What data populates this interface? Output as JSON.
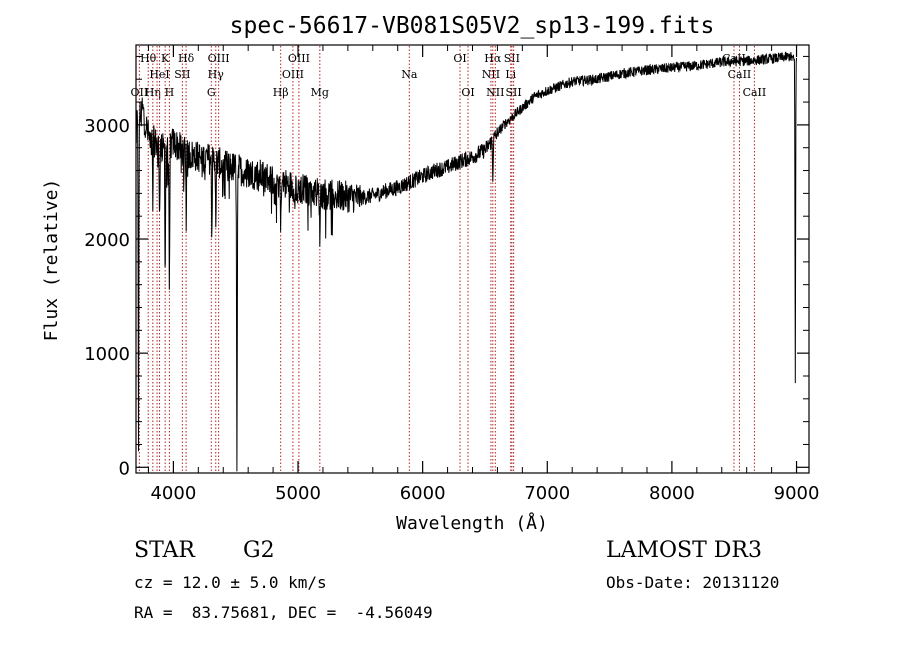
{
  "chart_data": {
    "type": "line",
    "title": "spec-56617-VB081S05V2_sp13-199.fits",
    "xlabel": "Wavelength (Å)",
    "ylabel": "Flux (relative)",
    "xlim": [
      3700,
      9100
    ],
    "ylim": [
      -50,
      3700
    ],
    "xticks": [
      4000,
      5000,
      6000,
      7000,
      8000,
      9000
    ],
    "xtick_labels": [
      "4000",
      "5000",
      "6000",
      "7000",
      "8000",
      "9000"
    ],
    "yticks": [
      0,
      1000,
      2000,
      3000
    ],
    "ytick_labels": [
      "0",
      "1000",
      "2000",
      "3000"
    ],
    "grid": false,
    "line_color": "#000000",
    "marker_color": "#b22222",
    "continuum": [
      [
        3700,
        3000
      ],
      [
        3750,
        3150
      ],
      [
        3800,
        2900
      ],
      [
        3850,
        2850
      ],
      [
        3900,
        2800
      ],
      [
        3950,
        2780
      ],
      [
        4000,
        2850
      ],
      [
        4050,
        2800
      ],
      [
        4100,
        2750
      ],
      [
        4200,
        2720
      ],
      [
        4300,
        2700
      ],
      [
        4400,
        2650
      ],
      [
        4500,
        2620
      ],
      [
        4600,
        2580
      ],
      [
        4700,
        2560
      ],
      [
        4800,
        2520
      ],
      [
        4900,
        2480
      ],
      [
        5000,
        2450
      ],
      [
        5100,
        2420
      ],
      [
        5200,
        2400
      ],
      [
        5300,
        2380
      ],
      [
        5400,
        2370
      ],
      [
        5500,
        2360
      ],
      [
        5600,
        2380
      ],
      [
        5700,
        2420
      ],
      [
        5800,
        2450
      ],
      [
        5900,
        2500
      ],
      [
        6000,
        2550
      ],
      [
        6100,
        2600
      ],
      [
        6200,
        2630
      ],
      [
        6300,
        2680
      ],
      [
        6400,
        2720
      ],
      [
        6500,
        2780
      ],
      [
        6550,
        2850
      ],
      [
        6650,
        3000
      ],
      [
        6700,
        3050
      ],
      [
        6800,
        3150
      ],
      [
        6900,
        3250
      ],
      [
        7000,
        3300
      ],
      [
        7200,
        3380
      ],
      [
        7400,
        3400
      ],
      [
        7600,
        3450
      ],
      [
        7800,
        3480
      ],
      [
        8000,
        3500
      ],
      [
        8200,
        3520
      ],
      [
        8400,
        3550
      ],
      [
        8600,
        3560
      ],
      [
        8800,
        3580
      ],
      [
        8950,
        3600
      ],
      [
        9000,
        3550
      ]
    ],
    "absorption_features": [
      {
        "wavelength": 3720,
        "depth": 3000
      },
      {
        "wavelength": 3835,
        "depth": 600
      },
      {
        "wavelength": 3889,
        "depth": 700
      },
      {
        "wavelength": 3934,
        "depth": 1200
      },
      {
        "wavelength": 3968,
        "depth": 1500
      },
      {
        "wavelength": 4102,
        "depth": 600
      },
      {
        "wavelength": 4308,
        "depth": 700
      },
      {
        "wavelength": 4341,
        "depth": 600
      },
      {
        "wavelength": 4510,
        "depth": 2550
      },
      {
        "wavelength": 4861,
        "depth": 500
      },
      {
        "wavelength": 5175,
        "depth": 400
      },
      {
        "wavelength": 6563,
        "depth": 350
      },
      {
        "wavelength": 8990,
        "depth": 2800
      }
    ],
    "line_markers": [
      {
        "wavelength": 3727,
        "top": "OII",
        "row": 3
      },
      {
        "wavelength": 3798,
        "top": "Hθ",
        "row": 1
      },
      {
        "wavelength": 3835,
        "top": "Hη",
        "row": 3
      },
      {
        "wavelength": 3869,
        "top": "",
        "row": 0
      },
      {
        "wavelength": 3889,
        "top": "HeI",
        "row": 2
      },
      {
        "wavelength": 3934,
        "top": "K",
        "row": 1
      },
      {
        "wavelength": 3968,
        "top": "H",
        "row": 3
      },
      {
        "wavelength": 4072,
        "top": "SII",
        "row": 2
      },
      {
        "wavelength": 4102,
        "top": "Hδ",
        "row": 1
      },
      {
        "wavelength": 4304,
        "top": "G",
        "row": 3
      },
      {
        "wavelength": 4340,
        "top": "Hγ",
        "row": 2
      },
      {
        "wavelength": 4363,
        "top": "OIII",
        "row": 1
      },
      {
        "wavelength": 4861,
        "top": "Hβ",
        "row": 3
      },
      {
        "wavelength": 4959,
        "top": "OIII",
        "row": 2
      },
      {
        "wavelength": 5007,
        "top": "OIII",
        "row": 1
      },
      {
        "wavelength": 5175,
        "top": "Mg",
        "row": 3
      },
      {
        "wavelength": 5893,
        "top": "Na",
        "row": 2
      },
      {
        "wavelength": 6300,
        "top": "OI",
        "row": 1
      },
      {
        "wavelength": 6364,
        "top": "OI",
        "row": 3
      },
      {
        "wavelength": 6548,
        "top": "NII",
        "row": 2
      },
      {
        "wavelength": 6563,
        "top": "Hα",
        "row": 1
      },
      {
        "wavelength": 6583,
        "top": "NII",
        "row": 3
      },
      {
        "wavelength": 6707,
        "top": "Li",
        "row": 2
      },
      {
        "wavelength": 6716,
        "top": "SII",
        "row": 1
      },
      {
        "wavelength": 6730,
        "top": "SII",
        "row": 3
      },
      {
        "wavelength": 8498,
        "top": "CaII",
        "row": 1
      },
      {
        "wavelength": 8542,
        "top": "CaII",
        "row": 2
      },
      {
        "wavelength": 8662,
        "top": "CaII",
        "row": 3
      }
    ]
  },
  "info": {
    "object_class": "STAR",
    "subclass": "G2",
    "survey": "LAMOST DR3",
    "cz": "cz = 12.0 ± 5.0 km/s",
    "obs_date": "Obs-Date: 20131120",
    "coords": "RA =  83.75681, DEC =  -4.56049"
  }
}
